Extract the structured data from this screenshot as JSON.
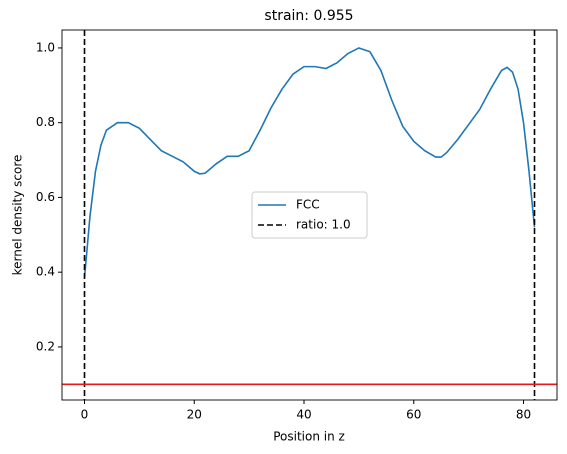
{
  "chart_data": {
    "type": "line",
    "title": "strain: 0.955",
    "x_label": "Position in z",
    "y_label": "kernel density score",
    "xlim": [
      -4.1,
      86.1
    ],
    "ylim": [
      0.058,
      1.048
    ],
    "xticks": [
      0,
      20,
      40,
      60,
      80
    ],
    "yticks": [
      0.2,
      0.4,
      0.6,
      0.8,
      {
        "value": 1,
        "label": "1.0"
      }
    ],
    "legend": "center",
    "series": [
      {
        "name": "FCC",
        "color": "#1f77b4",
        "x": [
          0,
          1,
          2,
          3,
          4,
          6,
          8,
          10,
          12,
          14,
          16,
          18,
          20,
          21,
          22,
          24,
          26,
          28,
          30,
          32,
          34,
          36,
          38,
          40,
          42,
          44,
          46,
          48,
          50,
          52,
          54,
          56,
          58,
          60,
          62,
          64,
          65,
          66,
          68,
          70,
          72,
          74,
          76,
          77,
          78,
          79,
          80,
          81,
          82
        ],
        "values": [
          0.385,
          0.55,
          0.67,
          0.74,
          0.78,
          0.8,
          0.8,
          0.785,
          0.755,
          0.725,
          0.71,
          0.695,
          0.67,
          0.663,
          0.665,
          0.69,
          0.71,
          0.71,
          0.725,
          0.78,
          0.84,
          0.89,
          0.93,
          0.95,
          0.95,
          0.945,
          0.96,
          0.985,
          1.0,
          0.99,
          0.94,
          0.86,
          0.79,
          0.75,
          0.725,
          0.708,
          0.708,
          0.72,
          0.755,
          0.795,
          0.835,
          0.89,
          0.94,
          0.948,
          0.935,
          0.89,
          0.8,
          0.67,
          0.52
        ]
      }
    ],
    "vlines": {
      "name": "ratio: 1.0",
      "color": "#000000",
      "dashed": true,
      "x": [
        0,
        82
      ]
    },
    "hline": {
      "y": 0.1,
      "color": "#e8191c"
    }
  }
}
